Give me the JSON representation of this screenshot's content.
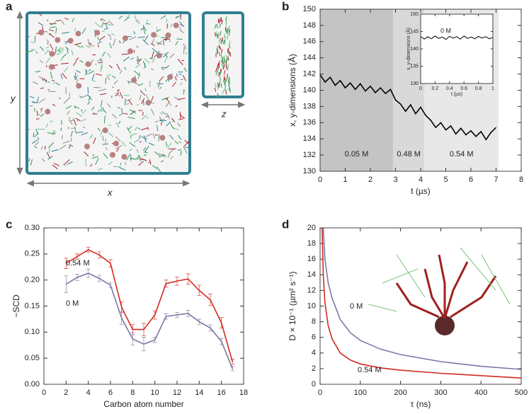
{
  "chart_data": [
    {
      "type": "image",
      "panel_label": "a",
      "xlabel": "x",
      "ylabel": "y",
      "zlabel": "z"
    },
    {
      "type": "line",
      "panel_label": "b",
      "xlabel": "t (µs)",
      "ylabel": "x, y-dimensions (Å)",
      "xlim": [
        0,
        8
      ],
      "ylim": [
        130,
        150
      ],
      "xticks": [
        0,
        1,
        2,
        3,
        4,
        5,
        6,
        7,
        8
      ],
      "yticks": [
        130,
        132,
        134,
        136,
        138,
        140,
        142,
        144,
        146,
        148,
        150
      ],
      "color": "#000000",
      "regions": [
        {
          "x0": 0,
          "x1": 2.9,
          "label": "0.05 M",
          "color": "#c4c4c4"
        },
        {
          "x0": 2.9,
          "x1": 4.15,
          "label": "0.48 M",
          "color": "#d9d9d9"
        },
        {
          "x0": 4.15,
          "x1": 7.1,
          "label": "0.54 M",
          "color": "#e8e8e8"
        }
      ],
      "x": [
        0,
        0.2,
        0.4,
        0.6,
        0.8,
        1.0,
        1.2,
        1.4,
        1.6,
        1.8,
        2.0,
        2.2,
        2.4,
        2.6,
        2.8,
        3.0,
        3.2,
        3.4,
        3.6,
        3.8,
        4.0,
        4.2,
        4.4,
        4.6,
        4.8,
        5.0,
        5.2,
        5.4,
        5.6,
        5.8,
        6.0,
        6.2,
        6.4,
        6.6,
        6.8,
        7.0
      ],
      "values": [
        141.9,
        141.0,
        141.6,
        140.6,
        141.2,
        140.3,
        140.9,
        140.1,
        140.8,
        139.9,
        140.5,
        139.7,
        140.3,
        139.6,
        140.1,
        138.8,
        138.3,
        137.4,
        138.2,
        137.1,
        137.9,
        136.9,
        136.3,
        135.4,
        136.0,
        135.1,
        135.6,
        134.6,
        135.3,
        134.5,
        135.0,
        134.3,
        134.9,
        133.9,
        134.8,
        135.4
      ],
      "inset": {
        "xlabel": "t (µs)",
        "ylabel": "x, y-dimensions (Å)",
        "annotation": "0 M",
        "xlim": [
          0,
          1
        ],
        "ylim": [
          130,
          150
        ],
        "xticks": [
          0,
          0.2,
          0.4,
          0.6,
          0.8,
          1
        ],
        "yticks": [
          130,
          135,
          140,
          145,
          150
        ],
        "color": "#000000",
        "x": [
          0,
          0.05,
          0.1,
          0.15,
          0.2,
          0.25,
          0.3,
          0.35,
          0.4,
          0.45,
          0.5,
          0.55,
          0.6,
          0.65,
          0.7,
          0.75,
          0.8,
          0.85,
          0.9,
          0.95,
          1
        ],
        "values": [
          143.6,
          142.8,
          143.5,
          142.9,
          143.7,
          143.0,
          143.4,
          142.7,
          143.6,
          143.1,
          143.5,
          142.8,
          143.7,
          143.0,
          143.4,
          142.9,
          143.6,
          143.1,
          143.5,
          142.9,
          143.3
        ]
      }
    },
    {
      "type": "line",
      "panel_label": "c",
      "xlabel": "Carbon atom number",
      "ylabel": "−SCD",
      "xlim": [
        0,
        18
      ],
      "ylim": [
        0,
        0.3
      ],
      "xticks": [
        0,
        2,
        4,
        6,
        8,
        10,
        12,
        14,
        16,
        18
      ],
      "yticks": [
        {
          "value": 0,
          "label": "0.00"
        },
        0.05,
        {
          "value": 0.1,
          "label": "0.10"
        },
        0.15,
        {
          "value": 0.2,
          "label": "0.20"
        },
        0.25,
        {
          "value": 0.3,
          "label": "0.30"
        }
      ],
      "x": [
        2,
        3,
        4,
        5,
        6,
        7,
        8,
        9,
        10,
        11,
        12,
        13,
        14,
        15,
        16,
        17
      ],
      "series": [
        {
          "name": "0.54 M",
          "color": "#d42a1f",
          "values": [
            0.232,
            0.245,
            0.258,
            0.248,
            0.232,
            0.148,
            0.105,
            0.105,
            0.133,
            0.193,
            0.198,
            0.202,
            0.18,
            0.162,
            0.118,
            0.043
          ],
          "errors": [
            0.01,
            0.005,
            0.005,
            0.006,
            0.007,
            0.01,
            0.01,
            0.012,
            0.008,
            0.007,
            0.008,
            0.01,
            0.01,
            0.011,
            0.01,
            0.005
          ]
        },
        {
          "name": "0 M",
          "color": "#7a78a6",
          "values": [
            0.192,
            0.205,
            0.213,
            0.203,
            0.19,
            0.127,
            0.087,
            0.077,
            0.085,
            0.13,
            0.133,
            0.136,
            0.12,
            0.108,
            0.082,
            0.03
          ],
          "errors": [
            0.016,
            0.006,
            0.008,
            0.006,
            0.005,
            0.012,
            0.012,
            0.013,
            0.005,
            0.005,
            0.005,
            0.006,
            0.005,
            0.006,
            0.006,
            0.004
          ]
        }
      ]
    },
    {
      "type": "line",
      "panel_label": "d",
      "xlabel": "τ (ns)",
      "ylabel": "D × 10⁻¹ (µm² s⁻¹)",
      "xlim": [
        0,
        500
      ],
      "ylim": [
        0,
        20
      ],
      "xticks": [
        0,
        100,
        200,
        300,
        400,
        500
      ],
      "yticks": [
        0,
        2,
        4,
        6,
        8,
        10,
        12,
        14,
        16,
        18,
        20
      ],
      "x": [
        5,
        8,
        12,
        20,
        30,
        50,
        75,
        100,
        150,
        200,
        300,
        400,
        500
      ],
      "series": [
        {
          "name": "0 M",
          "color": "#7a78a6",
          "values": [
            null,
            20,
            16,
            13,
            11,
            8.3,
            6.6,
            5.6,
            4.5,
            3.8,
            2.9,
            2.3,
            1.9
          ]
        },
        {
          "name": "0.54 M",
          "color": "#d42a1f",
          "values": [
            20,
            14,
            10.5,
            7.5,
            5.8,
            4.0,
            3.1,
            2.6,
            2.1,
            1.8,
            1.4,
            1.1,
            0.8
          ]
        }
      ]
    }
  ]
}
